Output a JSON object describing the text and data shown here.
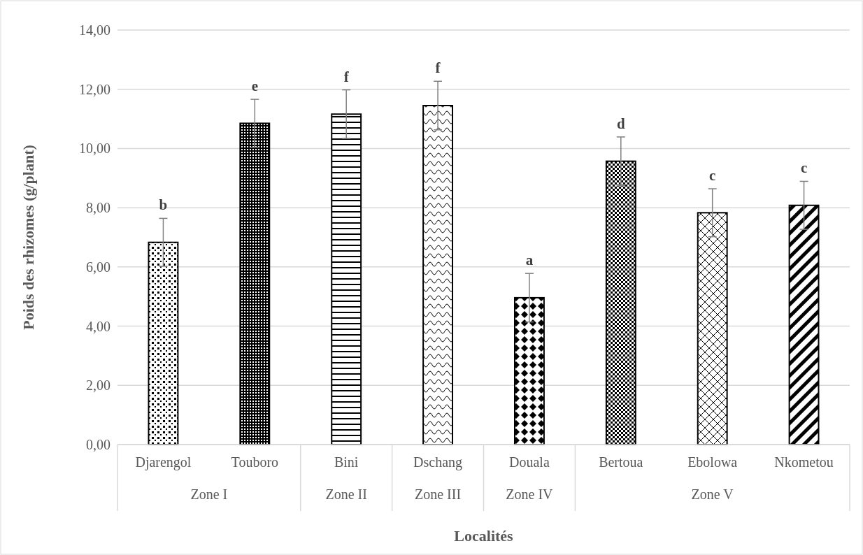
{
  "chart_data": {
    "type": "bar",
    "ylabel": "Poids des rhizomes (g/plant)",
    "xlabel": "Localités",
    "categories": [
      "Djarengol",
      "Touboro",
      "Bini",
      "Dschang",
      "Douala",
      "Bertoua",
      "Ebolowa",
      "Nkometou"
    ],
    "values": [
      6.83,
      10.85,
      11.16,
      11.45,
      4.96,
      9.57,
      7.83,
      8.08
    ],
    "errors": [
      0.81,
      0.81,
      0.82,
      0.82,
      0.82,
      0.82,
      0.81,
      0.81
    ],
    "color": "#000000",
    "ylim": [
      0,
      14
    ],
    "yticks": [
      {
        "value": 0,
        "label": "0,00"
      },
      {
        "value": 2,
        "label": "2,00"
      },
      {
        "value": 4,
        "label": "4,00"
      },
      {
        "value": 6,
        "label": "6,00"
      },
      {
        "value": 8,
        "label": "8,00"
      },
      {
        "value": 10,
        "label": "10,00"
      },
      {
        "value": 12,
        "label": "12,00"
      },
      {
        "value": 14,
        "label": "14,00"
      }
    ],
    "grid": "y",
    "annotations": [
      {
        "text": "b",
        "x": "Djarengol",
        "y": 7.64
      },
      {
        "text": "e",
        "x": "Touboro",
        "y": 11.66
      },
      {
        "text": "f",
        "x": "Bini",
        "y": 11.98
      },
      {
        "text": "f",
        "x": "Dschang",
        "y": 12.27
      },
      {
        "text": "a",
        "x": "Douala",
        "y": 5.78
      },
      {
        "text": "d",
        "x": "Bertoua",
        "y": 10.39
      },
      {
        "text": "c",
        "x": "Ebolowa",
        "y": 8.64
      },
      {
        "text": "c",
        "x": "Nkometou",
        "y": 8.89
      },
      "Zone I",
      "Zone II",
      "Zone III",
      "Zone IV",
      "Zone V"
    ]
  }
}
